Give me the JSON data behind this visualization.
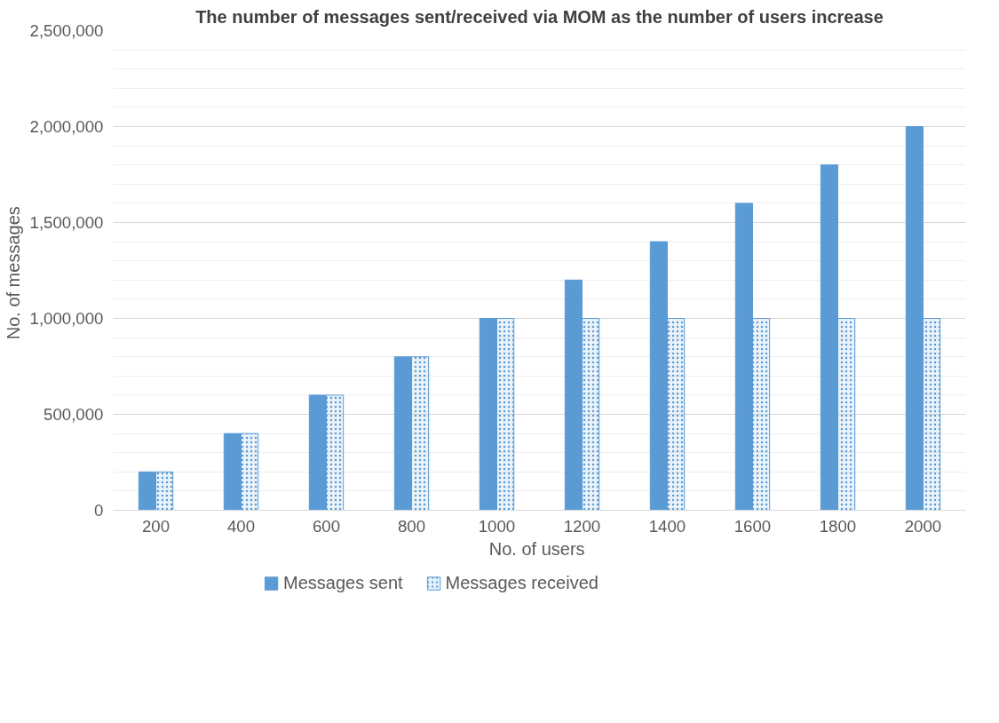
{
  "chart_data": {
    "type": "bar",
    "title": "The number of messages sent/received via MOM as the number of users increase",
    "xlabel": "No. of  users",
    "ylabel": "No. of  messages",
    "categories": [
      "200",
      "400",
      "600",
      "800",
      "1000",
      "1200",
      "1400",
      "1600",
      "1800",
      "2000"
    ],
    "series": [
      {
        "name": "Messages sent",
        "color": "#5b9bd5",
        "values": [
          200000,
          400000,
          600000,
          800000,
          1000000,
          1200000,
          1400000,
          1600000,
          1800000,
          2000000
        ]
      },
      {
        "name": "Messages received",
        "color": "#5b9bd5",
        "values": [
          200000,
          400000,
          600000,
          800000,
          1000000,
          1000000,
          1000000,
          1000000,
          1000000,
          1000000
        ]
      }
    ],
    "ylim": [
      0,
      2500000
    ],
    "yticks": [
      {
        "value": 0,
        "label": "0"
      },
      {
        "value": 500000,
        "label": "500,000"
      },
      {
        "value": 1000000,
        "label": "1,000,000"
      },
      {
        "value": 1500000,
        "label": "1,500,000"
      },
      {
        "value": 2000000,
        "label": "2,000,000"
      },
      {
        "value": 2500000,
        "label": "2,500,000"
      }
    ],
    "grid": "y",
    "legend": "bottom"
  }
}
